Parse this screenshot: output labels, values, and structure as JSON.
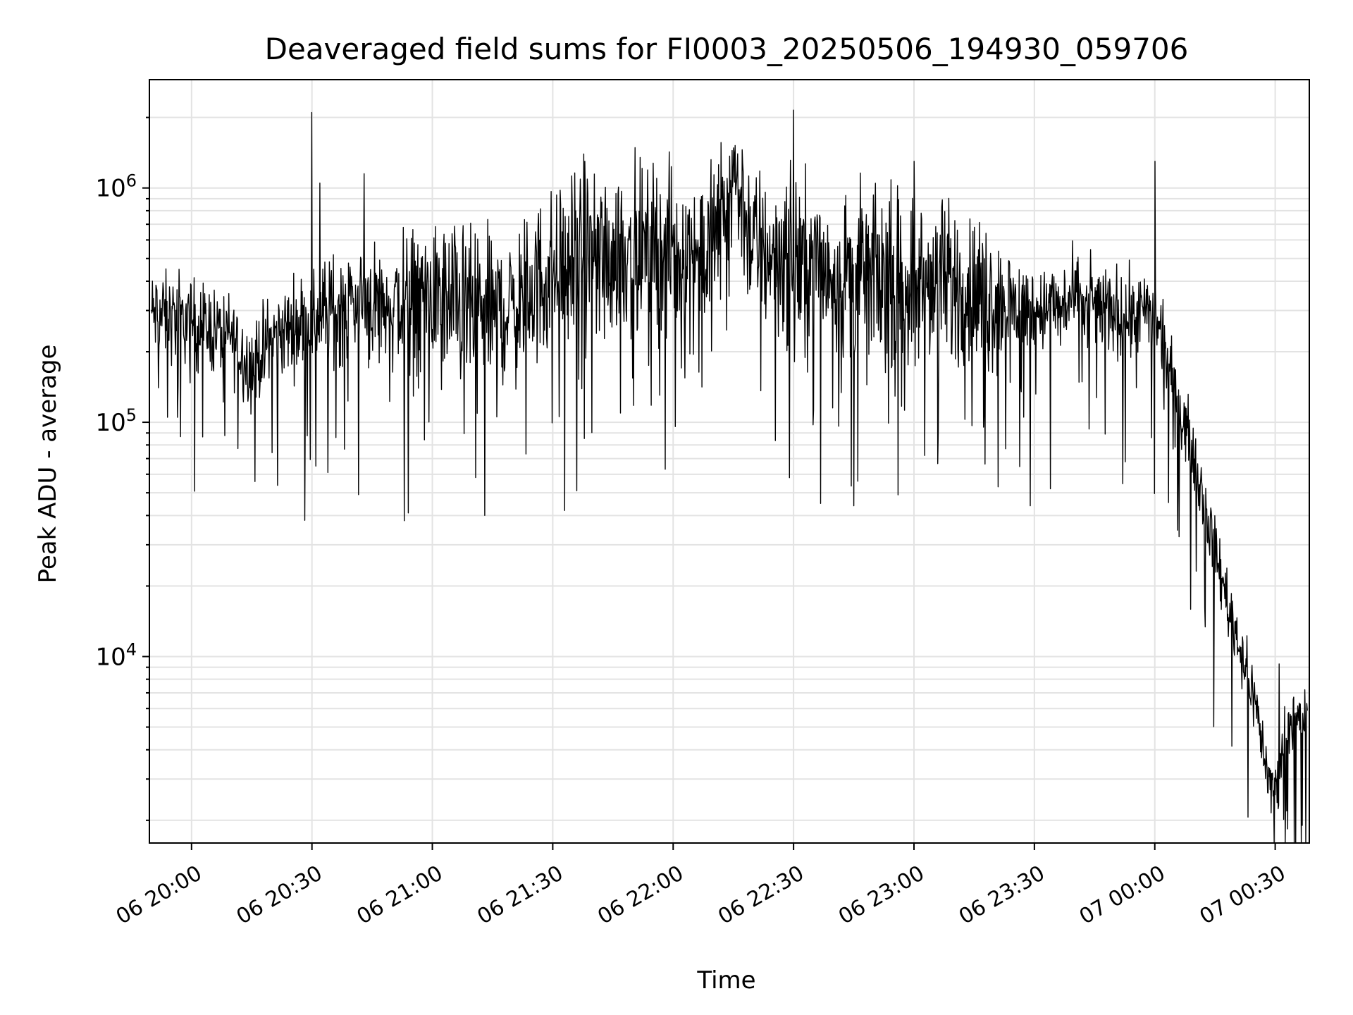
{
  "chart_data": {
    "type": "line",
    "title": "Deaveraged field sums for FI0003_20250506_194930_059706",
    "xlabel": "Time",
    "ylabel": "Peak ADU - average",
    "yscale": "log",
    "xlim": [
      "2025-05-06 19:49:30",
      "2025-05-07 00:38:30"
    ],
    "ylim": [
      1600,
      2900000
    ],
    "grid": true,
    "line_color": "#000000",
    "grid_color": "#e3e3e3",
    "x_ticks": [
      "06 20:00",
      "06 20:30",
      "06 21:00",
      "06 21:30",
      "06 22:00",
      "06 22:30",
      "06 23:00",
      "06 23:30",
      "07 00:00",
      "07 00:30"
    ],
    "y_ticks": [
      {
        "value": 10000,
        "base": "10",
        "exp": "4"
      },
      {
        "value": 100000,
        "base": "10",
        "exp": "5"
      },
      {
        "value": 1000000,
        "base": "10",
        "exp": "6"
      }
    ],
    "series": [
      {
        "x": [
          "2025-05-06 19:50",
          "2025-05-06 20:00",
          "2025-05-06 20:10",
          "2025-05-06 20:15",
          "2025-05-06 20:20",
          "2025-05-06 20:30",
          "2025-05-06 20:40",
          "2025-05-06 20:50",
          "2025-05-06 21:00",
          "2025-05-06 21:10",
          "2025-05-06 21:20",
          "2025-05-06 21:30",
          "2025-05-06 21:40",
          "2025-05-06 21:50",
          "2025-05-06 22:00",
          "2025-05-06 22:10",
          "2025-05-06 22:15",
          "2025-05-06 22:20",
          "2025-05-06 22:30",
          "2025-05-06 22:40",
          "2025-05-06 22:50",
          "2025-05-06 23:00",
          "2025-05-06 23:10",
          "2025-05-06 23:20",
          "2025-05-06 23:30",
          "2025-05-06 23:40",
          "2025-05-06 23:50",
          "2025-05-07 00:00",
          "2025-05-07 00:05",
          "2025-05-07 00:10",
          "2025-05-07 00:15",
          "2025-05-07 00:20",
          "2025-05-07 00:25",
          "2025-05-07 00:28",
          "2025-05-07 00:30",
          "2025-05-07 00:33",
          "2025-05-07 00:38"
        ],
        "y": [
          290000,
          270000,
          230000,
          170000,
          230000,
          280000,
          330000,
          320000,
          350000,
          300000,
          300000,
          450000,
          500000,
          560000,
          520000,
          560000,
          1200000,
          560000,
          500000,
          450000,
          430000,
          400000,
          380000,
          330000,
          300000,
          330000,
          300000,
          280000,
          140000,
          70000,
          28000,
          13000,
          6500,
          3200,
          2700,
          5200,
          5500
        ],
        "spread": [
          0.13,
          0.13,
          0.13,
          0.13,
          0.13,
          0.15,
          0.18,
          0.2,
          0.23,
          0.23,
          0.23,
          0.25,
          0.25,
          0.25,
          0.25,
          0.25,
          0.2,
          0.25,
          0.25,
          0.25,
          0.25,
          0.25,
          0.25,
          0.22,
          0.13,
          0.13,
          0.13,
          0.13,
          0.1,
          0.1,
          0.1,
          0.1,
          0.09,
          0.09,
          0.09,
          0.08,
          0.08
        ]
      }
    ],
    "peaks": [
      {
        "x": "2025-05-06 20:30",
        "y": 2100000
      },
      {
        "x": "2025-05-06 20:32",
        "y": 1050000
      },
      {
        "x": "2025-05-06 20:43",
        "y": 1150000
      },
      {
        "x": "2025-05-06 21:38",
        "y": 1300000
      },
      {
        "x": "2025-05-06 22:30",
        "y": 2150000
      },
      {
        "x": "2025-05-06 23:00",
        "y": 1300000
      },
      {
        "x": "2025-05-07 00:00",
        "y": 1300000
      },
      {
        "x": "2025-05-07 00:31",
        "y": 9300
      }
    ],
    "dips": [
      {
        "x": "2025-05-06 19:54",
        "y": 105000
      },
      {
        "x": "2025-05-06 20:31",
        "y": 65000
      },
      {
        "x": "2025-05-06 20:34",
        "y": 61000
      },
      {
        "x": "2025-05-06 20:36",
        "y": 86000
      },
      {
        "x": "2025-05-06 20:53",
        "y": 38000
      },
      {
        "x": "2025-05-06 20:54",
        "y": 41000
      },
      {
        "x": "2025-05-06 21:13",
        "y": 40000
      },
      {
        "x": "2025-05-06 21:33",
        "y": 42000
      },
      {
        "x": "2025-05-06 21:36",
        "y": 51000
      },
      {
        "x": "2025-05-06 21:58",
        "y": 63000
      },
      {
        "x": "2025-05-06 22:29",
        "y": 58000
      },
      {
        "x": "2025-05-06 22:45",
        "y": 44000
      },
      {
        "x": "2025-05-06 22:46",
        "y": 56000
      },
      {
        "x": "2025-05-06 22:56",
        "y": 49000
      },
      {
        "x": "2025-05-06 23:21",
        "y": 53000
      },
      {
        "x": "2025-05-06 23:29",
        "y": 44000
      },
      {
        "x": "2025-05-06 23:34",
        "y": 52000
      },
      {
        "x": "2025-05-07 00:29",
        "y": 2150
      }
    ]
  }
}
